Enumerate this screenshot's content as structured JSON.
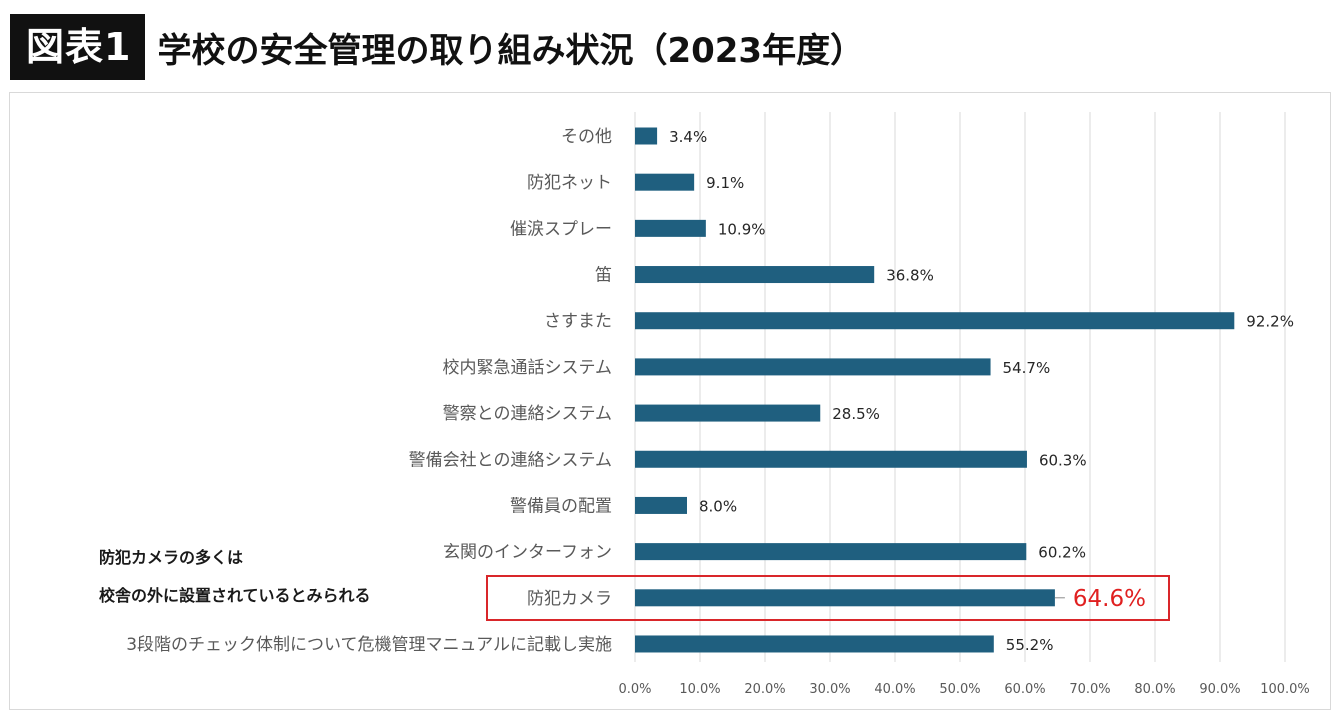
{
  "header": {
    "badge": "図表1",
    "title": "学校の安全管理の取り組み状況（2023年度）"
  },
  "annotation": {
    "line1": "防犯カメラの多くは",
    "line2": "校舎の外に設置されているとみられる"
  },
  "colors": {
    "bar": "#1f5f7f",
    "grid": "#d9d9d9",
    "highlight": "#d9262a",
    "highlight_text": "#e02020"
  },
  "chart_data": {
    "type": "bar",
    "orientation": "horizontal",
    "categories": [
      "その他",
      "防犯ネット",
      "催涙スプレー",
      "笛",
      "さすまた",
      "校内緊急通話システム",
      "警察との連絡システム",
      "警備会社との連絡システム",
      "警備員の配置",
      "玄関のインターフォン",
      "防犯カメラ",
      "3段階のチェック体制について危機管理マニュアルに記載し実施"
    ],
    "values": [
      3.4,
      9.1,
      10.9,
      36.8,
      92.2,
      54.7,
      28.5,
      60.3,
      8.0,
      60.2,
      64.6,
      55.2
    ],
    "value_labels": [
      "3.4%",
      "9.1%",
      "10.9%",
      "36.8%",
      "92.2%",
      "54.7%",
      "28.5%",
      "60.3%",
      "8.0%",
      "60.2%",
      "64.6%",
      "55.2%"
    ],
    "highlight_category": "防犯カメラ",
    "xlim": [
      0,
      100
    ],
    "x_ticks": [
      "0.0%",
      "10.0%",
      "20.0%",
      "30.0%",
      "40.0%",
      "50.0%",
      "60.0%",
      "70.0%",
      "80.0%",
      "90.0%",
      "100.0%"
    ],
    "grid": "vertical",
    "legend": "none"
  }
}
